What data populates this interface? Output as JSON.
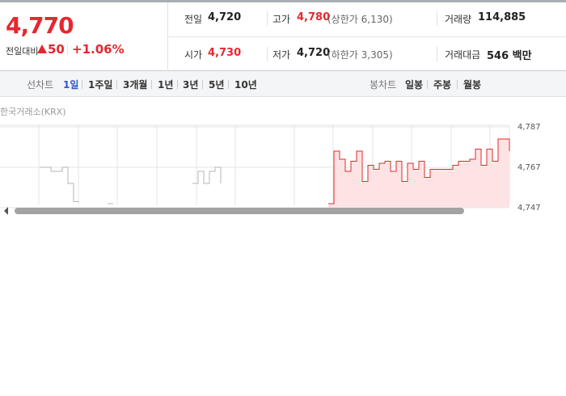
{
  "quote": {
    "price": "4,770",
    "change_label": "전일대비",
    "change": "50",
    "change_rate": "+1.06%"
  },
  "stats": {
    "prev_close": {
      "label": "전일",
      "value": "4,720"
    },
    "high": {
      "label": "고가",
      "value": "4,780",
      "note": "(상한가 6,130)"
    },
    "volume": {
      "label": "거래량",
      "value": "114,885"
    },
    "open": {
      "label": "시가",
      "value": "4,730"
    },
    "low": {
      "label": "저가",
      "value": "4,720",
      "note": "(하한가 3,305)"
    },
    "amount": {
      "label": "거래대금",
      "value": "546 백만"
    }
  },
  "tabs": {
    "line_label": "선차트",
    "line_periods": [
      "1일",
      "1주일",
      "3개월",
      "1년",
      "3년",
      "5년",
      "10년"
    ],
    "candle_label": "봉차트",
    "candle_periods": [
      "일봉",
      "주봉",
      "월봉"
    ]
  },
  "source": "한국거래소(KRX)",
  "chart_data": {
    "type": "line",
    "ylim": [
      4747,
      4787
    ],
    "yticks": [
      {
        "value": 4787,
        "label": "4,787"
      },
      {
        "value": 4767,
        "label": "4,767"
      },
      {
        "value": 4747,
        "label": "4,747"
      }
    ],
    "grid": true,
    "series": [
      {
        "color": "#b5b5b5",
        "values": [
          null,
          null,
          null,
          null,
          null,
          null,
          null,
          4767,
          4767,
          4765,
          4765,
          4767,
          4759,
          4750,
          4750,
          null,
          null,
          null,
          null,
          4749,
          4749,
          null,
          null,
          null,
          null,
          null,
          null,
          null,
          null,
          null,
          null,
          null,
          null,
          null,
          4759,
          4765,
          4759,
          4765,
          4767,
          4759,
          null,
          null,
          null,
          null,
          null,
          null,
          null,
          null,
          null,
          null,
          null,
          null,
          null,
          null,
          null,
          null,
          null,
          null,
          null,
          null,
          null,
          null,
          null,
          null,
          null,
          null,
          null,
          null,
          null,
          null,
          null,
          null,
          null,
          null,
          null,
          null,
          null,
          null,
          null,
          null,
          null,
          null,
          null,
          null,
          null,
          null,
          null,
          null,
          null,
          null,
          null
        ]
      },
      {
        "color": "#e4282f",
        "fill": "#fde3e4",
        "values": [
          null,
          null,
          null,
          null,
          null,
          null,
          null,
          null,
          null,
          null,
          null,
          null,
          null,
          null,
          null,
          null,
          null,
          null,
          null,
          null,
          null,
          null,
          null,
          null,
          null,
          null,
          null,
          null,
          null,
          null,
          null,
          null,
          null,
          null,
          null,
          null,
          null,
          null,
          null,
          null,
          null,
          null,
          null,
          null,
          null,
          null,
          null,
          null,
          null,
          null,
          null,
          null,
          null,
          null,
          null,
          null,
          null,
          null,
          4749,
          4775,
          4771,
          4765,
          4770,
          4775,
          4760,
          4768,
          4766,
          4769,
          4770,
          4765,
          4770,
          4760,
          4769,
          4766,
          4770,
          4762,
          4766,
          4766,
          4766,
          4766,
          4768,
          4770,
          4770,
          4771,
          4776,
          4768,
          4776,
          4770,
          4781,
          4781,
          4775
        ]
      }
    ]
  }
}
